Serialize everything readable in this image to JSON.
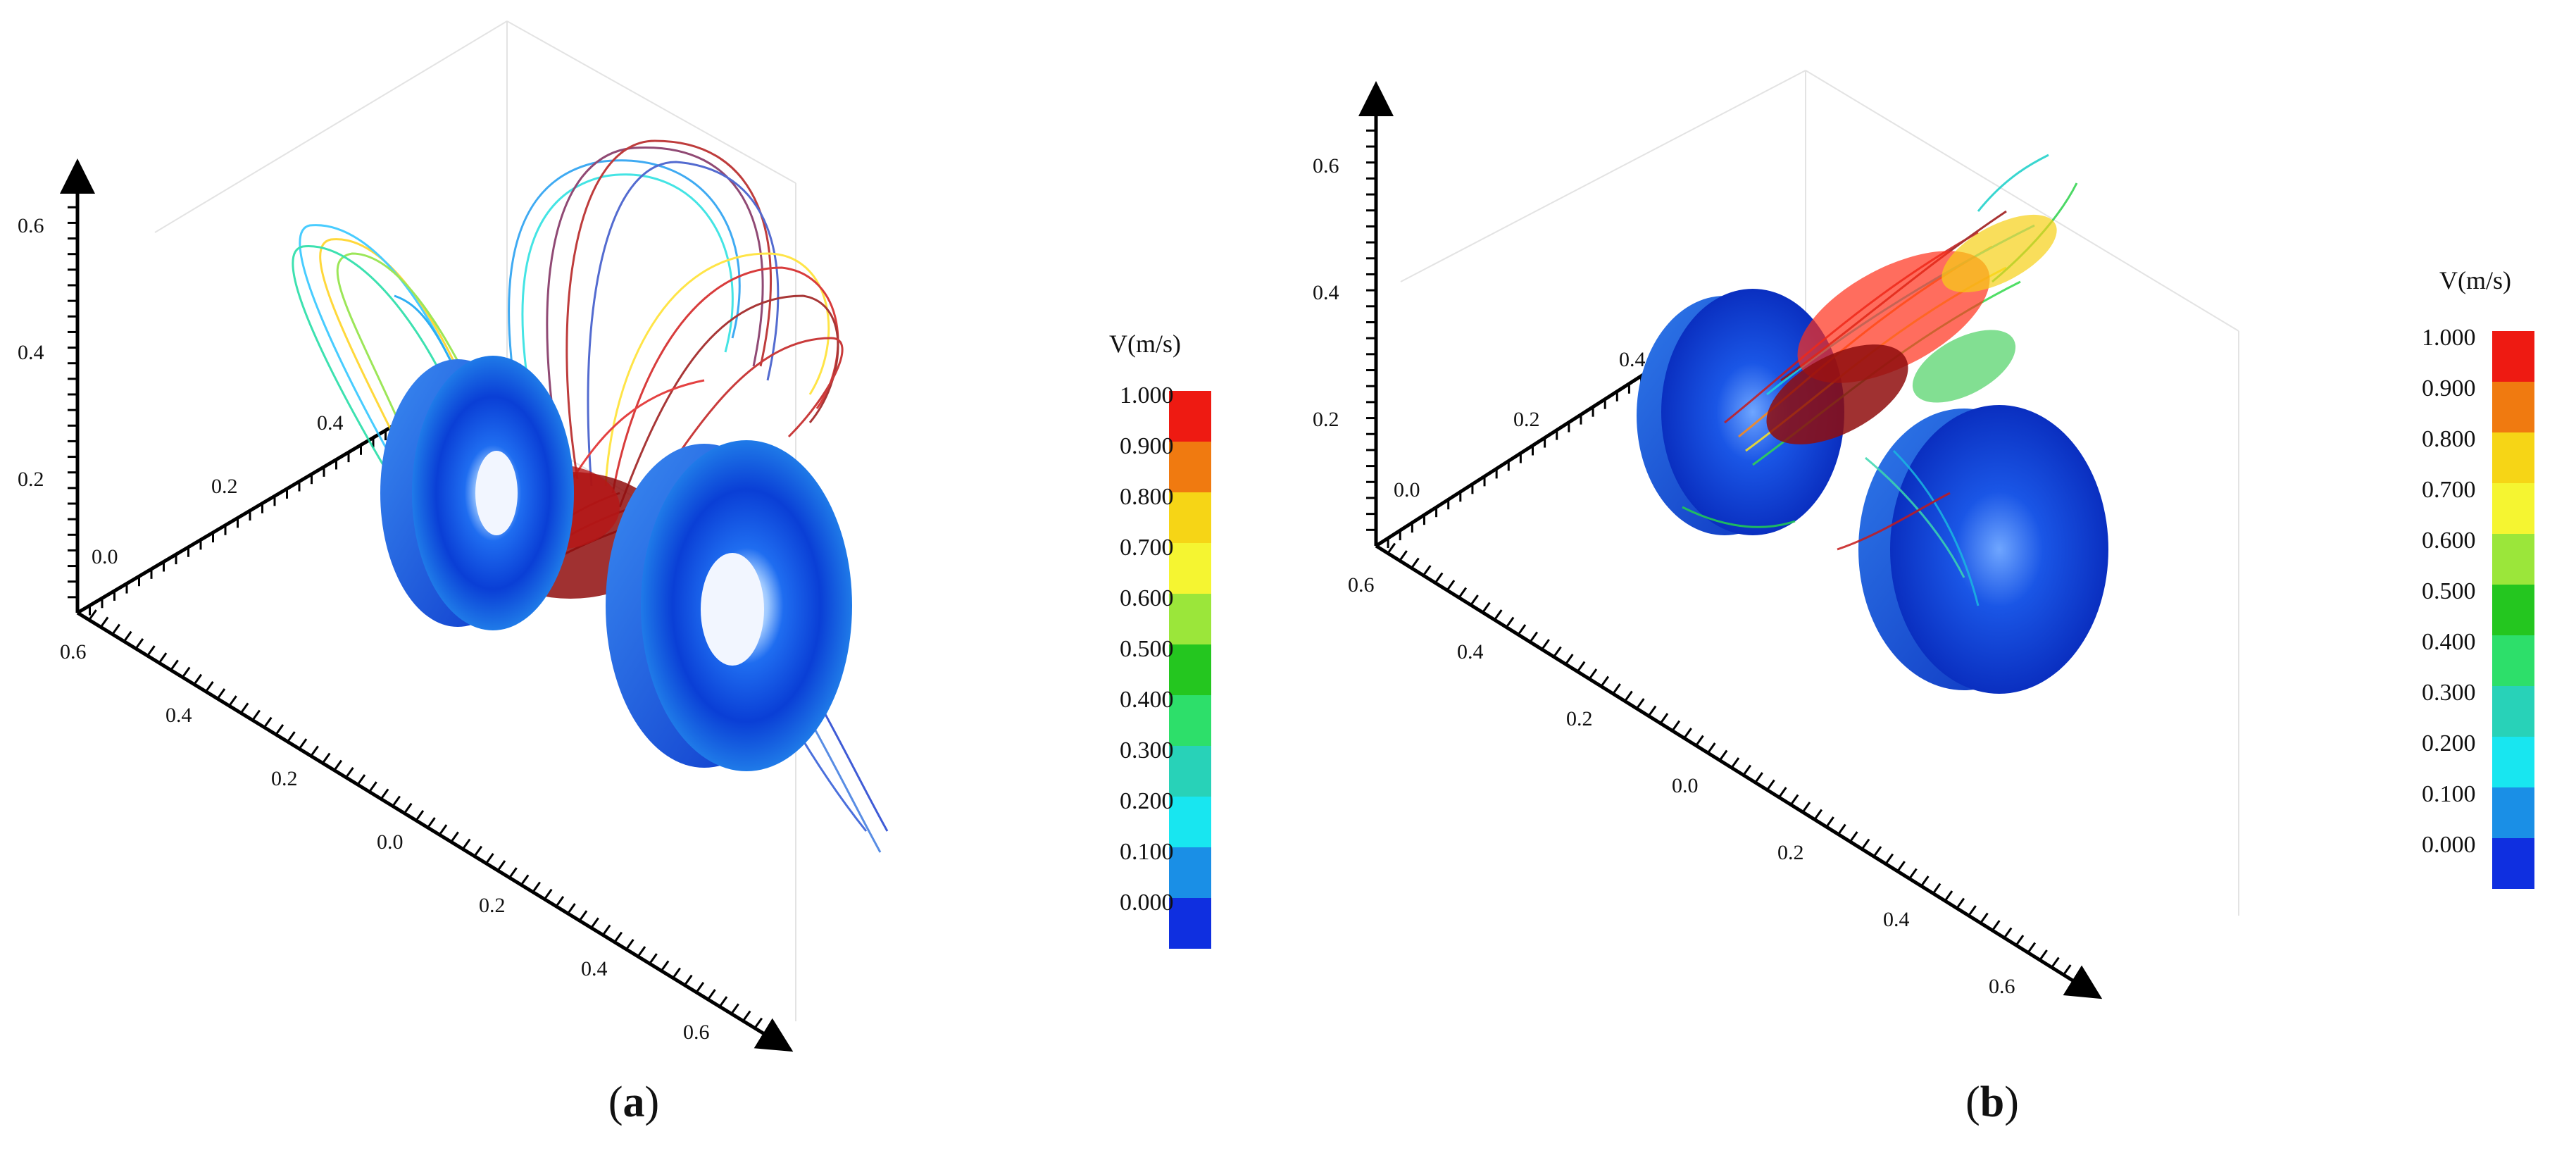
{
  "panels": [
    {
      "id": "a",
      "caption_open": "(",
      "caption_letter": "a",
      "caption_close": ")",
      "vertical_axis_ticks": [
        "0.6",
        "0.4",
        "0.2"
      ],
      "left_axis_ticks": [
        "0.0",
        "0.2",
        "0.4"
      ],
      "front_axis_ticks": [
        "0.6",
        "0.4",
        "0.2",
        "0.0",
        "0.2",
        "0.4",
        "0.6"
      ],
      "colorbar": {
        "title": "V(m/s)",
        "labels": [
          "1.000",
          "0.900",
          "0.800",
          "0.700",
          "0.600",
          "0.500",
          "0.400",
          "0.300",
          "0.200",
          "0.100",
          "0.000"
        ]
      }
    },
    {
      "id": "b",
      "caption_open": "(",
      "caption_letter": "b",
      "caption_close": ")",
      "vertical_axis_ticks": [
        "0.6",
        "0.4",
        "0.2"
      ],
      "left_axis_ticks": [
        "0.0",
        "0.2",
        "0.4"
      ],
      "front_axis_ticks": [
        "0.6",
        "0.4",
        "0.2",
        "0.0",
        "0.2",
        "0.4",
        "0.6"
      ],
      "colorbar": {
        "title": "V(m/s)",
        "labels": [
          "1.000",
          "0.900",
          "0.800",
          "0.700",
          "0.600",
          "0.500",
          "0.400",
          "0.300",
          "0.200",
          "0.100",
          "0.000"
        ]
      }
    }
  ],
  "colorbar_colors": [
    "#ee1a12",
    "#f07a10",
    "#f6d516",
    "#f5f531",
    "#9be63a",
    "#24c61f",
    "#2ddf6a",
    "#28d2b8",
    "#18e6f0",
    "#1a8fe6",
    "#0f2fe0"
  ]
}
